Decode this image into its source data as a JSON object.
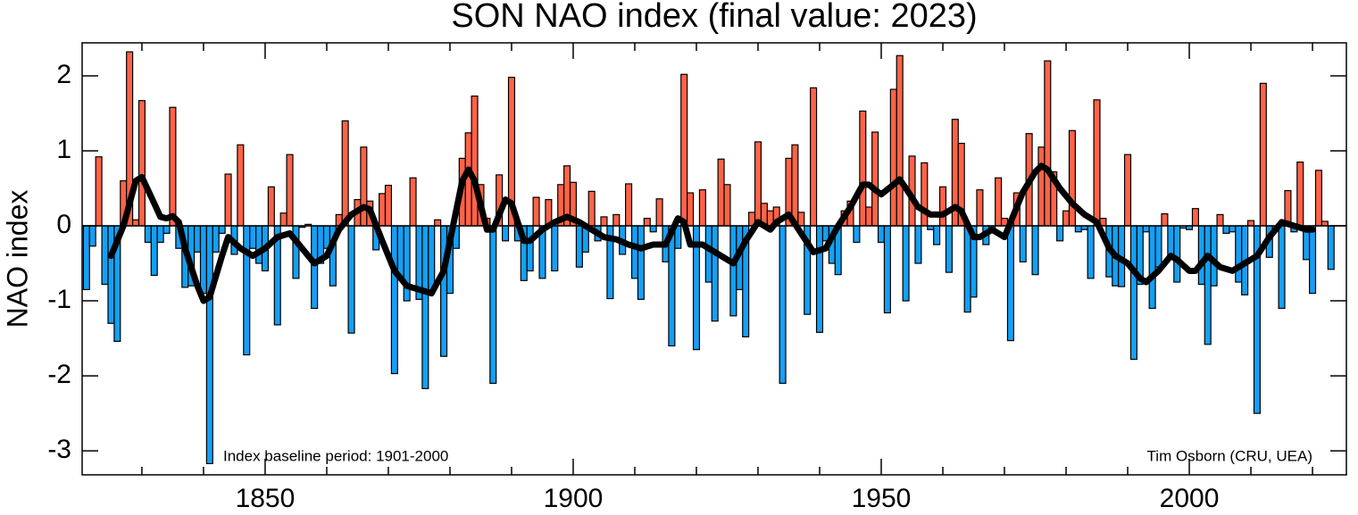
{
  "chart_data": {
    "type": "bar",
    "title": "SON NAO index (final value: 2023)",
    "ylabel": "NAO index",
    "annotations": [
      "Index baseline period: 1901-2000",
      "Tim Osborn (CRU, UEA)"
    ],
    "x": [
      1821,
      1822,
      1823,
      1824,
      1825,
      1826,
      1827,
      1828,
      1829,
      1830,
      1831,
      1832,
      1833,
      1834,
      1835,
      1836,
      1837,
      1838,
      1839,
      1840,
      1841,
      1842,
      1843,
      1844,
      1845,
      1846,
      1847,
      1848,
      1849,
      1850,
      1851,
      1852,
      1853,
      1854,
      1855,
      1856,
      1857,
      1858,
      1859,
      1860,
      1861,
      1862,
      1863,
      1864,
      1865,
      1866,
      1867,
      1868,
      1869,
      1870,
      1871,
      1872,
      1873,
      1874,
      1875,
      1876,
      1877,
      1878,
      1879,
      1880,
      1881,
      1882,
      1883,
      1884,
      1885,
      1886,
      1887,
      1888,
      1889,
      1890,
      1891,
      1892,
      1893,
      1894,
      1895,
      1896,
      1897,
      1898,
      1899,
      1900,
      1901,
      1902,
      1903,
      1904,
      1905,
      1906,
      1907,
      1908,
      1909,
      1910,
      1911,
      1912,
      1913,
      1914,
      1915,
      1916,
      1917,
      1918,
      1919,
      1920,
      1921,
      1922,
      1923,
      1924,
      1925,
      1926,
      1927,
      1928,
      1929,
      1930,
      1931,
      1932,
      1933,
      1934,
      1935,
      1936,
      1937,
      1938,
      1939,
      1940,
      1941,
      1942,
      1943,
      1944,
      1945,
      1946,
      1947,
      1948,
      1949,
      1950,
      1951,
      1952,
      1953,
      1954,
      1955,
      1956,
      1957,
      1958,
      1959,
      1960,
      1961,
      1962,
      1963,
      1964,
      1965,
      1966,
      1967,
      1968,
      1969,
      1970,
      1971,
      1972,
      1973,
      1974,
      1975,
      1976,
      1977,
      1978,
      1979,
      1980,
      1981,
      1982,
      1983,
      1984,
      1985,
      1986,
      1987,
      1988,
      1989,
      1990,
      1991,
      1992,
      1993,
      1994,
      1995,
      1996,
      1997,
      1998,
      1999,
      2000,
      2001,
      2002,
      2003,
      2004,
      2005,
      2006,
      2007,
      2008,
      2009,
      2010,
      2011,
      2012,
      2013,
      2014,
      2015,
      2016,
      2017,
      2018,
      2019,
      2020,
      2021,
      2022,
      2023
    ],
    "values": [
      -0.85,
      -0.27,
      0.92,
      -0.78,
      -1.3,
      -1.54,
      0.6,
      2.32,
      0.08,
      1.67,
      -0.22,
      -0.66,
      -0.22,
      -0.1,
      1.58,
      -0.3,
      -0.82,
      -0.8,
      -0.35,
      -0.9,
      -3.17,
      -0.35,
      -0.1,
      0.69,
      -0.38,
      1.08,
      -1.72,
      -0.3,
      -0.5,
      -0.6,
      0.52,
      -1.32,
      0.17,
      0.95,
      -0.7,
      -0.02,
      0.02,
      -1.1,
      -0.5,
      -0.3,
      -0.8,
      0.15,
      1.4,
      -1.43,
      0.35,
      1.05,
      0.33,
      -0.32,
      0.43,
      0.54,
      -1.97,
      -0.72,
      -1.0,
      0.64,
      -0.98,
      -2.17,
      -0.9,
      0.08,
      -1.74,
      -0.9,
      -0.3,
      0.9,
      1.24,
      1.73,
      0.55,
      0.1,
      -2.1,
      0.68,
      -0.2,
      1.98,
      -0.2,
      -0.73,
      -0.6,
      0.38,
      -0.7,
      0.35,
      -0.6,
      0.55,
      0.8,
      0.58,
      -0.55,
      -0.35,
      0.46,
      -0.2,
      0.12,
      -0.97,
      0.15,
      -0.38,
      0.56,
      -0.7,
      -0.98,
      0.1,
      -0.08,
      0.36,
      -0.48,
      -1.6,
      -0.3,
      2.02,
      0.44,
      -1.65,
      0.48,
      -0.75,
      -1.27,
      0.89,
      0.55,
      -1.2,
      -0.85,
      -1.48,
      0.18,
      1.12,
      0.3,
      0.2,
      0.25,
      -2.1,
      0.9,
      1.08,
      0.18,
      -1.18,
      1.84,
      -1.42,
      -0.2,
      -0.5,
      -0.65,
      0.2,
      0.33,
      -0.22,
      1.53,
      0.25,
      1.25,
      -0.22,
      -1.16,
      1.82,
      2.27,
      -1.0,
      0.93,
      -0.5,
      0.84,
      -0.05,
      -0.25,
      0.52,
      -0.62,
      1.42,
      1.1,
      -1.15,
      -0.95,
      0.48,
      -0.25,
      -0.05,
      0.64,
      0.1,
      -1.53,
      0.44,
      -0.48,
      1.23,
      -0.65,
      1.05,
      2.2,
      0.72,
      -0.2,
      0.2,
      1.27,
      -0.08,
      -0.05,
      -0.7,
      1.68,
      0.1,
      -0.68,
      -0.8,
      -0.81,
      0.95,
      -1.78,
      -0.78,
      -0.08,
      -1.1,
      -0.55,
      0.16,
      -0.4,
      -0.75,
      -0.03,
      -0.05,
      0.23,
      -0.78,
      -1.58,
      -0.8,
      0.15,
      -0.1,
      -0.08,
      -0.75,
      -0.92,
      0.07,
      -2.5,
      1.9,
      -0.42,
      -0.07,
      -1.1,
      0.47,
      -0.08,
      0.85,
      -0.45,
      -0.9,
      0.74,
      0.06,
      -0.58
    ],
    "positive_color": "#ff6347",
    "negative_color": "#14a0f5",
    "smooth": {
      "color": "#000000",
      "x": [
        1825,
        1827,
        1829,
        1830,
        1832,
        1833,
        1834,
        1835,
        1836,
        1837,
        1839,
        1840,
        1841,
        1843,
        1844,
        1846,
        1848,
        1850,
        1852,
        1854,
        1856,
        1858,
        1860,
        1862,
        1864,
        1866,
        1867,
        1869,
        1871,
        1873,
        1875,
        1877,
        1879,
        1881,
        1882,
        1883,
        1884,
        1886,
        1887,
        1888,
        1889,
        1890,
        1892,
        1893,
        1895,
        1897,
        1899,
        1901,
        1903,
        1905,
        1907,
        1909,
        1911,
        1913,
        1915,
        1917,
        1918,
        1919,
        1921,
        1922,
        1924,
        1926,
        1928,
        1930,
        1932,
        1933,
        1935,
        1937,
        1939,
        1941,
        1943,
        1945,
        1947,
        1948,
        1949,
        1950,
        1952,
        1953,
        1954,
        1956,
        1958,
        1960,
        1962,
        1963,
        1965,
        1966,
        1967,
        1968,
        1970,
        1971,
        1973,
        1975,
        1976,
        1977,
        1979,
        1981,
        1983,
        1985,
        1987,
        1988,
        1990,
        1992,
        1993,
        1995,
        1997,
        1998,
        2000,
        2001,
        2003,
        2005,
        2007,
        2009,
        2011,
        2013,
        2015,
        2017,
        2019,
        2020
      ],
      "values": [
        -0.4,
        0.0,
        0.6,
        0.65,
        0.3,
        0.12,
        0.1,
        0.13,
        0.05,
        -0.3,
        -0.8,
        -1.0,
        -0.95,
        -0.4,
        -0.15,
        -0.3,
        -0.4,
        -0.3,
        -0.15,
        -0.1,
        -0.3,
        -0.5,
        -0.4,
        -0.05,
        0.15,
        0.25,
        0.22,
        -0.2,
        -0.6,
        -0.8,
        -0.85,
        -0.9,
        -0.6,
        0.2,
        0.6,
        0.75,
        0.6,
        -0.05,
        -0.05,
        0.15,
        0.35,
        0.3,
        -0.2,
        -0.2,
        -0.05,
        0.05,
        0.12,
        0.05,
        -0.05,
        -0.15,
        -0.18,
        -0.25,
        -0.3,
        -0.25,
        -0.25,
        0.1,
        0.05,
        -0.25,
        -0.25,
        -0.3,
        -0.4,
        -0.5,
        -0.2,
        0.05,
        -0.05,
        0.05,
        0.15,
        -0.1,
        -0.35,
        -0.3,
        0.0,
        0.25,
        0.55,
        0.55,
        0.48,
        0.42,
        0.55,
        0.62,
        0.5,
        0.25,
        0.15,
        0.15,
        0.25,
        0.2,
        -0.15,
        -0.15,
        -0.1,
        -0.05,
        -0.15,
        0.05,
        0.45,
        0.72,
        0.8,
        0.75,
        0.5,
        0.3,
        0.15,
        0.05,
        -0.3,
        -0.4,
        -0.5,
        -0.7,
        -0.75,
        -0.6,
        -0.4,
        -0.45,
        -0.6,
        -0.6,
        -0.4,
        -0.55,
        -0.6,
        -0.5,
        -0.4,
        -0.15,
        0.05,
        0.0,
        -0.05,
        -0.05
      ]
    },
    "xlim": [
      1820.3,
      2025.5
    ],
    "ylim": [
      -3.32,
      2.44
    ],
    "xticks": [
      1850,
      1900,
      1950,
      2000
    ],
    "xminor_ticks": [
      1830,
      1840,
      1860,
      1870,
      1880,
      1890,
      1910,
      1920,
      1930,
      1940,
      1960,
      1970,
      1980,
      1990,
      2010,
      2020
    ],
    "yticks": [
      -3,
      -2,
      -1,
      0,
      1,
      2
    ]
  }
}
